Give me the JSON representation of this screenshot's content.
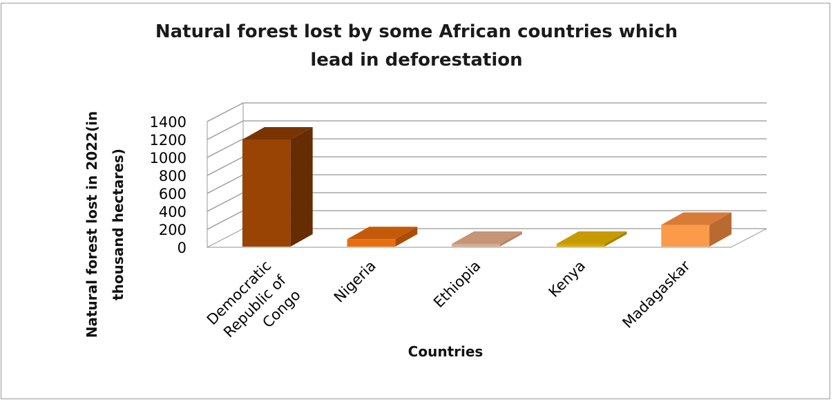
{
  "chart_data": {
    "type": "bar",
    "title_lines": [
      "Natural forest lost by some African  countries which",
      "lead in deforestation"
    ],
    "xlabel": "Countries",
    "ylabel_lines": [
      "Natural forest lost in  2022(in",
      "thousand hectares)"
    ],
    "categories": [
      "Democratic Republic of Congo",
      "Nigeria",
      "Ethiopia",
      "Kenya",
      "Madagaskar"
    ],
    "category_label_lines": [
      [
        "Democratic",
        "Republic of",
        "Congo"
      ],
      [
        "Nigeria"
      ],
      [
        "Ethiopia"
      ],
      [
        "Kenya"
      ],
      [
        "Madagaskar"
      ]
    ],
    "values": [
      1200,
      90,
      5,
      5,
      250
    ],
    "ylim": [
      0,
      1400
    ],
    "yticks": [
      "0",
      "200",
      "400",
      "600",
      "800",
      "1000",
      "1200",
      "1400"
    ],
    "grid": true,
    "legend": "none",
    "bar_colors": [
      {
        "front": "#994404",
        "top": "#7a3403",
        "side": "#662c02"
      },
      {
        "front": "#e76f0f",
        "top": "#c45a08",
        "side": "#a84d08"
      },
      {
        "front": "#d7ab8d",
        "top": "#c59575",
        "side": "#b5876a"
      },
      {
        "front": "#d9a800",
        "top": "#c79a00",
        "side": "#a88300"
      },
      {
        "front": "#fb9a4a",
        "top": "#d87b38",
        "side": "#b86a30"
      }
    ]
  }
}
